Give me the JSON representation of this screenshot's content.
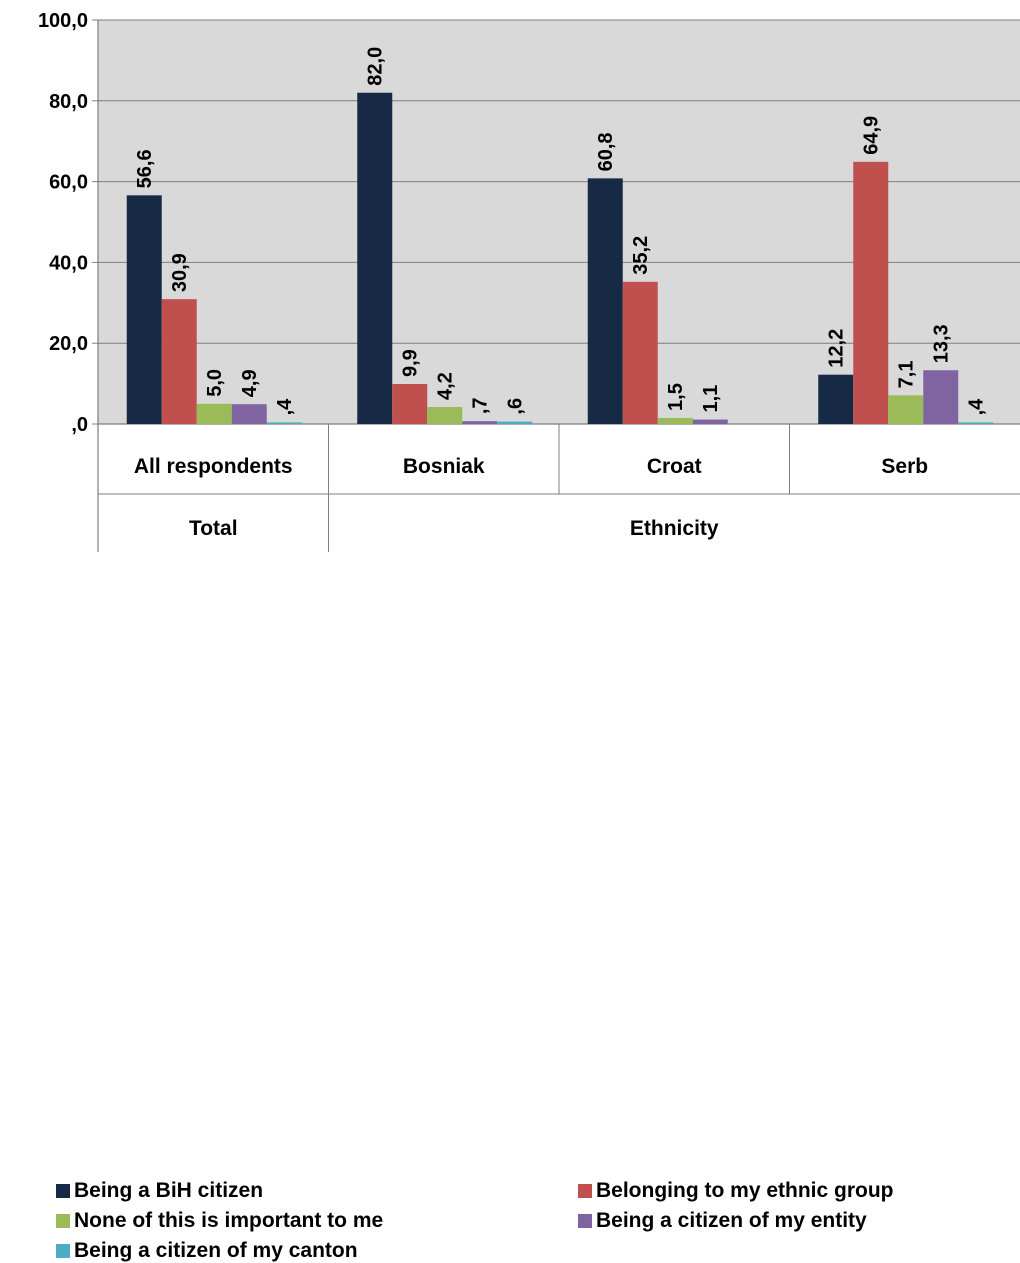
{
  "chart_data": {
    "type": "bar",
    "categories": [
      "All respondents",
      "Bosniak",
      "Croat",
      "Serb"
    ],
    "groups": [
      {
        "label": "Total",
        "categories": [
          "All respondents"
        ]
      },
      {
        "label": "Ethnicity",
        "categories": [
          "Bosniak",
          "Croat",
          "Serb"
        ]
      }
    ],
    "series": [
      {
        "name": "Being a BiH citizen",
        "color": "#172a45",
        "values": [
          56.6,
          82.0,
          60.8,
          12.2
        ],
        "labels": [
          "56,6",
          "82,0",
          "60,8",
          "12,2"
        ]
      },
      {
        "name": "Belonging to my ethnic group",
        "color": "#c0504d",
        "values": [
          30.9,
          9.9,
          35.2,
          64.9
        ],
        "labels": [
          "30,9",
          "9,9",
          "35,2",
          "64,9"
        ]
      },
      {
        "name": "None of this is important to me",
        "color": "#9bbb59",
        "values": [
          5.0,
          4.2,
          1.5,
          7.1
        ],
        "labels": [
          "5,0",
          "4,2",
          "1,5",
          "7,1"
        ]
      },
      {
        "name": "Being a citizen of my entity",
        "color": "#8064a2",
        "values": [
          4.9,
          0.7,
          1.1,
          13.3
        ],
        "labels": [
          "4,9",
          ",7",
          "1,1",
          "13,3"
        ]
      },
      {
        "name": "Being a citizen of my canton",
        "color": "#4bacc6",
        "values": [
          0.4,
          0.6,
          0.0,
          0.4
        ],
        "labels": [
          ",4",
          ",6",
          "",
          ",4"
        ]
      }
    ],
    "ylim": [
      0,
      100
    ],
    "yticks": [
      0,
      20,
      40,
      60,
      80,
      100
    ],
    "ytick_labels": [
      ",0",
      "20,0",
      "40,0",
      "60,0",
      "80,0",
      "100,0"
    ],
    "grid": true,
    "legend_position": "bottom",
    "background_color": "#d9d9d9"
  }
}
